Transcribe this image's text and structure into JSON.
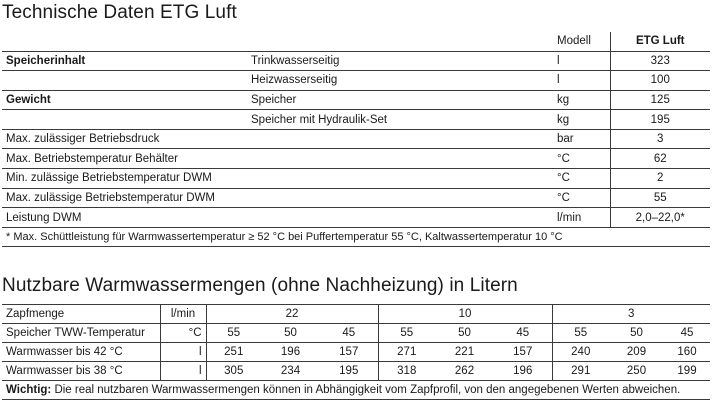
{
  "section1": {
    "title": "Technische Daten ETG Luft",
    "header": {
      "modell": "Modell",
      "product": "ETG Luft"
    },
    "rows": [
      {
        "param": "Speicherinhalt",
        "param_bold": true,
        "sub": "Trinkwasserseitig",
        "unit": "l",
        "value": "323"
      },
      {
        "param": "",
        "param_bold": false,
        "sub": "Heizwasserseitig",
        "unit": "l",
        "value": "100"
      },
      {
        "param": "Gewicht",
        "param_bold": true,
        "sub": "Speicher",
        "unit": "kg",
        "value": "125"
      },
      {
        "param": "",
        "param_bold": false,
        "sub": "Speicher mit Hydraulik-Set",
        "unit": "kg",
        "value": "195"
      },
      {
        "param": "Max. zulässiger Betriebsdruck",
        "param_bold": false,
        "sub": "",
        "unit": "bar",
        "value": "3"
      },
      {
        "param": "Max. Betriebstemperatur Behälter",
        "param_bold": false,
        "sub": "",
        "unit": "°C",
        "value": "62"
      },
      {
        "param": "Min. zulässige Betriebstemperatur DWM",
        "param_bold": false,
        "sub": "",
        "unit": "°C",
        "value": "2"
      },
      {
        "param": "Max. zulässige Betriebstemperatur DWM",
        "param_bold": false,
        "sub": "",
        "unit": "°C",
        "value": "55"
      },
      {
        "param": "Leistung DWM",
        "param_bold": false,
        "sub": "",
        "unit": "l/min",
        "value": "2,0–22,0*"
      }
    ],
    "footnote": "* Max. Schüttleistung für Warmwassertemperatur ≥ 52 °C bei Puffertemperatur 55 °C, Kaltwassertemperatur 10 °C"
  },
  "section2": {
    "title": "Nutzbare Warmwassermengen (ohne Nachheizung) in Litern",
    "zapfmenge": {
      "label": "Zapfmenge",
      "unit": "l/min",
      "groups": [
        "22",
        "10",
        "3"
      ]
    },
    "rows": [
      {
        "label": "Speicher TWW-Temperatur",
        "unit": "°C",
        "values": [
          "55",
          "50",
          "45",
          "55",
          "50",
          "45",
          "55",
          "50",
          "45"
        ]
      },
      {
        "label": "Warmwasser bis 42 °C",
        "unit": "l",
        "values": [
          "251",
          "196",
          "157",
          "271",
          "221",
          "157",
          "240",
          "209",
          "160"
        ]
      },
      {
        "label": "Warmwasser bis 38 °C",
        "unit": "l",
        "values": [
          "305",
          "234",
          "195",
          "318",
          "262",
          "196",
          "291",
          "250",
          "199"
        ]
      }
    ],
    "note": {
      "bold": "Wichtig:",
      "text": " Die real nutzbaren Warmwassermengen können in Abhängigkeit vom Zapfprofil, von den angegebenen Werten abweichen."
    }
  }
}
